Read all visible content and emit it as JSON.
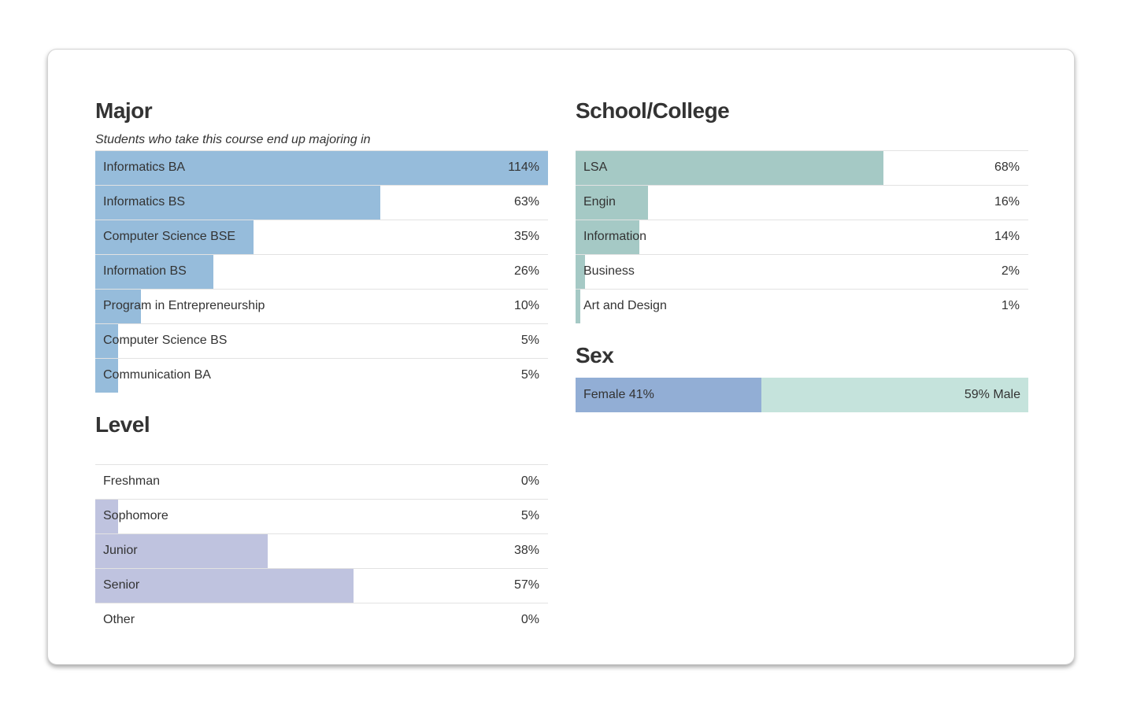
{
  "chart_data": [
    {
      "type": "bar",
      "title": "Major",
      "subtitle": "Students who take this course end up majoring in",
      "categories": [
        "Informatics BA",
        "Informatics BS",
        "Computer Science BSE",
        "Information BS",
        "Program in Entrepreneurship",
        "Computer Science BS",
        "Communication BA"
      ],
      "values": [
        114,
        63,
        35,
        26,
        10,
        5,
        5
      ],
      "value_labels": [
        "114%",
        "63%",
        "35%",
        "26%",
        "10%",
        "5%",
        "5%"
      ],
      "color": "#96bcdb",
      "xlim": [
        0,
        100
      ]
    },
    {
      "type": "bar",
      "title": "School/College",
      "categories": [
        "LSA",
        "Engin",
        "Information",
        "Business",
        "Art and Design"
      ],
      "values": [
        68,
        16,
        14,
        2,
        1
      ],
      "value_labels": [
        "68%",
        "16%",
        "14%",
        "2%",
        "1%"
      ],
      "color": "#a5c9c5",
      "xlim": [
        0,
        100
      ]
    },
    {
      "type": "bar",
      "title": "Level",
      "categories": [
        "Freshman",
        "Sophomore",
        "Junior",
        "Senior",
        "Other"
      ],
      "values": [
        0,
        5,
        38,
        57,
        0
      ],
      "value_labels": [
        "0%",
        "5%",
        "38%",
        "57%",
        "0%"
      ],
      "color": "#bfc3df",
      "xlim": [
        0,
        100
      ]
    },
    {
      "type": "stacked-bar",
      "title": "Sex",
      "xlim": [
        0,
        100
      ],
      "series": [
        {
          "name": "Female",
          "color": "#92aed5",
          "values": [
            41
          ],
          "value_labels": [
            "41%"
          ]
        },
        {
          "name": "Male",
          "color": "#c5e3dc",
          "values": [
            59
          ],
          "value_labels": [
            "59%"
          ]
        }
      ]
    }
  ]
}
